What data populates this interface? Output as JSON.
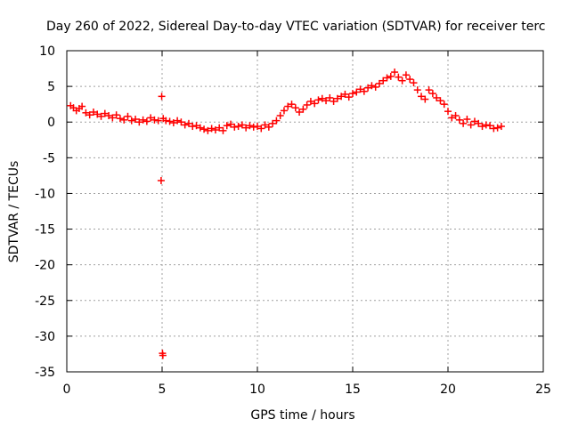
{
  "chart_data": {
    "type": "scatter",
    "title": "Day 260 of 2022, Sidereal Day-to-day VTEC variation (SDTVAR) for receiver terc",
    "xlabel": "GPS time / hours",
    "ylabel": "SDTVAR / TECUs",
    "xlim": [
      0,
      25
    ],
    "ylim": [
      -35,
      10
    ],
    "xticks": [
      "0",
      "5",
      "10",
      "15",
      "20",
      "25"
    ],
    "yticks": [
      "10",
      "5",
      "0",
      "-5",
      "-10",
      "-15",
      "-20",
      "-25",
      "-30",
      "-35"
    ],
    "grid": true,
    "marker": "+",
    "colors": {
      "series": "#ff0000",
      "grid": "#a0a0a0",
      "axis": "#000000"
    },
    "series": [
      {
        "name": "SDTVAR",
        "x": [
          0.2,
          0.35,
          0.5,
          0.65,
          0.8,
          1.0,
          1.2,
          1.4,
          1.6,
          1.8,
          2.0,
          2.2,
          2.4,
          2.6,
          2.8,
          3.0,
          3.2,
          3.4,
          3.6,
          3.8,
          4.0,
          4.2,
          4.4,
          4.6,
          4.8,
          4.95,
          4.98,
          5.02,
          5.04,
          5.06,
          5.2,
          5.4,
          5.6,
          5.8,
          6.0,
          6.2,
          6.4,
          6.6,
          6.8,
          7.0,
          7.2,
          7.4,
          7.6,
          7.8,
          8.0,
          8.2,
          8.4,
          8.6,
          8.8,
          9.0,
          9.2,
          9.4,
          9.6,
          9.8,
          10.0,
          10.2,
          10.4,
          10.6,
          10.8,
          11.0,
          11.2,
          11.4,
          11.6,
          11.8,
          12.0,
          12.2,
          12.4,
          12.6,
          12.8,
          13.0,
          13.2,
          13.4,
          13.6,
          13.8,
          14.0,
          14.2,
          14.4,
          14.6,
          14.8,
          15.0,
          15.2,
          15.4,
          15.6,
          15.8,
          16.0,
          16.2,
          16.4,
          16.6,
          16.8,
          17.0,
          17.2,
          17.4,
          17.6,
          17.8,
          18.0,
          18.2,
          18.4,
          18.6,
          18.8,
          19.0,
          19.2,
          19.4,
          19.6,
          19.8,
          20.0,
          20.2,
          20.4,
          20.6,
          20.8,
          21.0,
          21.2,
          21.4,
          21.6,
          21.8,
          22.0,
          22.2,
          22.4,
          22.6,
          22.8
        ],
        "y": [
          2.3,
          2.0,
          1.6,
          1.9,
          2.2,
          1.3,
          1.0,
          1.4,
          1.1,
          0.8,
          1.2,
          0.9,
          0.6,
          1.0,
          0.5,
          0.3,
          0.8,
          0.2,
          0.4,
          0.0,
          0.3,
          0.1,
          0.6,
          0.3,
          0.2,
          -8.2,
          3.6,
          -32.4,
          -32.7,
          0.5,
          0.2,
          0.1,
          -0.1,
          0.2,
          0.0,
          -0.4,
          -0.2,
          -0.6,
          -0.5,
          -0.8,
          -1.0,
          -1.2,
          -0.9,
          -1.1,
          -0.8,
          -1.2,
          -0.5,
          -0.3,
          -0.7,
          -0.6,
          -0.4,
          -0.8,
          -0.5,
          -0.7,
          -0.6,
          -0.9,
          -0.4,
          -0.7,
          -0.2,
          0.2,
          0.9,
          1.6,
          2.2,
          2.5,
          2.0,
          1.4,
          1.8,
          2.4,
          2.9,
          2.6,
          3.1,
          3.3,
          3.0,
          3.4,
          2.9,
          3.3,
          3.6,
          3.9,
          3.5,
          4.0,
          4.2,
          4.6,
          4.3,
          4.8,
          5.1,
          4.9,
          5.4,
          5.8,
          6.2,
          6.4,
          7.0,
          6.3,
          5.8,
          6.6,
          6.0,
          5.5,
          4.5,
          3.6,
          3.2,
          4.5,
          4.0,
          3.4,
          3.0,
          2.5,
          1.5,
          0.6,
          0.9,
          0.3,
          -0.2,
          0.4,
          -0.4,
          0.1,
          -0.2,
          -0.6,
          -0.4,
          -0.5,
          -0.9,
          -0.8,
          -0.6
        ]
      }
    ]
  }
}
